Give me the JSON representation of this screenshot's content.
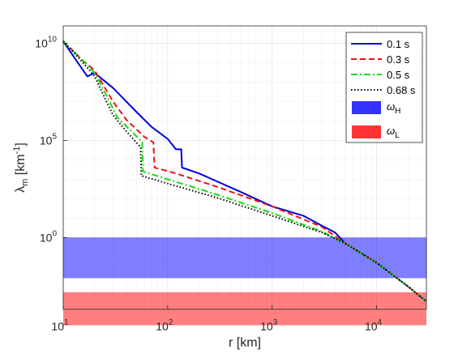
{
  "chart_data": {
    "type": "line",
    "xlabel": "r [km]",
    "ylabel": "λ_m [km^-1]",
    "xscale": "log",
    "yscale": "log",
    "xlim": [
      10,
      30000
    ],
    "ylim_log10": [
      -3.7,
      10.9
    ],
    "x_ticks": [
      {
        "value": 10,
        "base": "10",
        "exp": "1"
      },
      {
        "value": 100,
        "base": "10",
        "exp": "2"
      },
      {
        "value": 1000,
        "base": "10",
        "exp": "3"
      },
      {
        "value": 10000,
        "base": "10",
        "exp": "4"
      }
    ],
    "y_ticks": [
      {
        "value": 1,
        "base": "10",
        "exp": "0"
      },
      {
        "value": 100000,
        "base": "10",
        "exp": "5"
      },
      {
        "value": 10000000000,
        "base": "10",
        "exp": "10"
      }
    ],
    "grid": true,
    "legend_position": "top-right",
    "series": [
      {
        "name": "0.1 s",
        "color": "#0000dd",
        "dash": "solid",
        "points": [
          [
            10,
            13000000000.0
          ],
          [
            12,
            3000000000.0
          ],
          [
            17,
            200000000.0
          ],
          [
            20,
            300000000.0
          ],
          [
            30,
            50000000.0
          ],
          [
            50,
            3000000.0
          ],
          [
            70,
            500000.0
          ],
          [
            100,
            120000.0
          ],
          [
            120,
            35000.0
          ],
          [
            135,
            35000.0
          ],
          [
            137,
            4000.0
          ],
          [
            200,
            2000.0
          ],
          [
            500,
            220.0
          ],
          [
            1000,
            40.0
          ],
          [
            2000,
            13.0
          ],
          [
            3000,
            4
          ],
          [
            4000,
            1.8
          ],
          [
            5000,
            0.5
          ],
          [
            10000,
            0.05
          ],
          [
            20000,
            0.003
          ],
          [
            30000,
            0.0005
          ]
        ]
      },
      {
        "name": "0.3 s",
        "color": "#ee1111",
        "dash": "dashed",
        "points": [
          [
            10,
            13000000000.0
          ],
          [
            15,
            1500000000.0
          ],
          [
            20,
            400000000.0
          ],
          [
            30,
            10000000.0
          ],
          [
            40,
            1200000.0
          ],
          [
            60,
            150000.0
          ],
          [
            73,
            80000.0
          ],
          [
            75,
            4000.0
          ],
          [
            120,
            2000.0
          ],
          [
            300,
            400.0
          ],
          [
            1000,
            40.0
          ],
          [
            3000,
            3.5
          ],
          [
            5000,
            0.5
          ],
          [
            10000,
            0.05
          ],
          [
            20000,
            0.003
          ],
          [
            30000,
            0.0005
          ]
        ]
      },
      {
        "name": "0.5 s",
        "color": "#11dd11",
        "dash": "dashdot",
        "points": [
          [
            10,
            13000000000.0
          ],
          [
            15,
            1500000000.0
          ],
          [
            20,
            300000000.0
          ],
          [
            25,
            30000000.0
          ],
          [
            33,
            1500000.0
          ],
          [
            45,
            300000.0
          ],
          [
            57,
            80000.0
          ],
          [
            58,
            2500.0
          ],
          [
            100,
            1000.0
          ],
          [
            300,
            160.0
          ],
          [
            1000,
            18.0
          ],
          [
            3000,
            2
          ],
          [
            5000,
            0.5
          ],
          [
            10000,
            0.05
          ],
          [
            20000,
            0.003
          ],
          [
            30000,
            0.0005
          ]
        ]
      },
      {
        "name": "0.68 s",
        "color": "#000000",
        "dash": "dotted",
        "points": [
          [
            10,
            13000000000.0
          ],
          [
            15,
            1200000000.0
          ],
          [
            20,
            200000000.0
          ],
          [
            25,
            15000000.0
          ],
          [
            30,
            2000000.0
          ],
          [
            40,
            300000.0
          ],
          [
            55,
            45000.0
          ],
          [
            56,
            1500.0
          ],
          [
            100,
            600.0
          ],
          [
            300,
            110.0
          ],
          [
            1000,
            13.0
          ],
          [
            3000,
            1.8
          ],
          [
            5000,
            0.5
          ],
          [
            10000,
            0.05
          ],
          [
            20000,
            0.003
          ],
          [
            30000,
            0.0005
          ]
        ]
      }
    ],
    "bands": [
      {
        "name": "ω_H",
        "color": "#0000ff",
        "opacity": 0.5,
        "y_range": [
          0.008,
          1.0
        ]
      },
      {
        "name": "ω_L",
        "color": "#ff0000",
        "opacity": 0.5,
        "y_range": [
          3e-05,
          0.0015
        ]
      }
    ]
  }
}
